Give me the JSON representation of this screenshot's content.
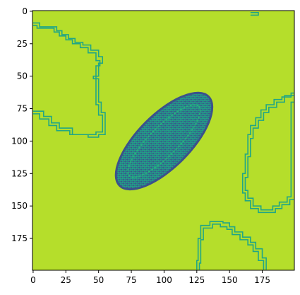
{
  "chart_data": {
    "type": "heatmap",
    "title": "",
    "xlabel": "",
    "ylabel": "",
    "xlim": [
      0,
      199
    ],
    "ylim": [
      199,
      0
    ],
    "grid": false,
    "x_ticks": [
      {
        "value": 0,
        "label": "0"
      },
      {
        "value": 25,
        "label": "25"
      },
      {
        "value": 50,
        "label": "50"
      },
      {
        "value": 75,
        "label": "75"
      },
      {
        "value": 100,
        "label": "100"
      },
      {
        "value": 125,
        "label": "125"
      },
      {
        "value": 150,
        "label": "150"
      },
      {
        "value": 175,
        "label": "175"
      }
    ],
    "y_ticks": [
      {
        "value": 0,
        "label": "0"
      },
      {
        "value": 25,
        "label": "25"
      },
      {
        "value": 50,
        "label": "50"
      },
      {
        "value": 75,
        "label": "75"
      },
      {
        "value": 100,
        "label": "100"
      },
      {
        "value": 125,
        "label": "125"
      },
      {
        "value": 150,
        "label": "150"
      },
      {
        "value": 175,
        "label": "175"
      }
    ],
    "colors": {
      "background": "#b5de2b",
      "contour": "#21a685",
      "dark": "#3b528b",
      "mid": "#2c728e",
      "light_teal": "#28ae80"
    },
    "contours": [
      {
        "name": "top-left blob",
        "points": [
          [
            0,
            9
          ],
          [
            5,
            9
          ],
          [
            5,
            12
          ],
          [
            18,
            12
          ],
          [
            18,
            15
          ],
          [
            22,
            15
          ],
          [
            22,
            18
          ],
          [
            27,
            18
          ],
          [
            27,
            21
          ],
          [
            32,
            21
          ],
          [
            32,
            24
          ],
          [
            38,
            24
          ],
          [
            38,
            26
          ],
          [
            44,
            26
          ],
          [
            44,
            30
          ],
          [
            50,
            30
          ],
          [
            50,
            35
          ],
          [
            53,
            35
          ],
          [
            53,
            40
          ],
          [
            50,
            40
          ],
          [
            50,
            50
          ],
          [
            46,
            50
          ],
          [
            46,
            52
          ],
          [
            50,
            52
          ],
          [
            50,
            70
          ],
          [
            52,
            70
          ],
          [
            52,
            78
          ],
          [
            55,
            78
          ],
          [
            55,
            95
          ],
          [
            50,
            95
          ],
          [
            50,
            97
          ],
          [
            42,
            97
          ],
          [
            42,
            95
          ],
          [
            28,
            95
          ],
          [
            28,
            92
          ],
          [
            18,
            92
          ],
          [
            18,
            88
          ],
          [
            12,
            88
          ],
          [
            12,
            83
          ],
          [
            5,
            83
          ],
          [
            5,
            79
          ],
          [
            0,
            79
          ]
        ]
      },
      {
        "name": "top-left blob outer",
        "points": [
          [
            0,
            11
          ],
          [
            3,
            11
          ],
          [
            3,
            13
          ],
          [
            16,
            13
          ],
          [
            16,
            16
          ],
          [
            20,
            16
          ],
          [
            20,
            19
          ],
          [
            25,
            19
          ],
          [
            25,
            22
          ],
          [
            30,
            22
          ],
          [
            30,
            25
          ],
          [
            36,
            25
          ],
          [
            36,
            28
          ],
          [
            42,
            28
          ],
          [
            42,
            32
          ],
          [
            48,
            32
          ],
          [
            48,
            38
          ],
          [
            51,
            38
          ],
          [
            51,
            42
          ],
          [
            48,
            42
          ],
          [
            48,
            52
          ],
          [
            48,
            72
          ],
          [
            50,
            72
          ],
          [
            50,
            80
          ],
          [
            53,
            80
          ],
          [
            53,
            93
          ],
          [
            48,
            93
          ],
          [
            48,
            95
          ],
          [
            30,
            95
          ],
          [
            30,
            90
          ],
          [
            20,
            90
          ],
          [
            20,
            86
          ],
          [
            14,
            86
          ],
          [
            14,
            81
          ],
          [
            8,
            81
          ],
          [
            8,
            77
          ],
          [
            0,
            77
          ]
        ]
      },
      {
        "name": "right blob",
        "points": [
          [
            199,
            63
          ],
          [
            197,
            63
          ],
          [
            197,
            66
          ],
          [
            190,
            66
          ],
          [
            190,
            68
          ],
          [
            184,
            68
          ],
          [
            184,
            72
          ],
          [
            178,
            72
          ],
          [
            178,
            76
          ],
          [
            174,
            76
          ],
          [
            174,
            82
          ],
          [
            170,
            82
          ],
          [
            170,
            88
          ],
          [
            166,
            88
          ],
          [
            166,
            95
          ],
          [
            164,
            95
          ],
          [
            164,
            110
          ],
          [
            162,
            110
          ],
          [
            162,
            125
          ],
          [
            160,
            125
          ],
          [
            160,
            140
          ],
          [
            162,
            140
          ],
          [
            162,
            146
          ],
          [
            166,
            146
          ],
          [
            166,
            152
          ],
          [
            172,
            152
          ],
          [
            172,
            155
          ],
          [
            185,
            155
          ],
          [
            185,
            152
          ],
          [
            190,
            152
          ],
          [
            190,
            149
          ],
          [
            196,
            149
          ],
          [
            196,
            145
          ],
          [
            199,
            145
          ]
        ]
      },
      {
        "name": "right blob outer",
        "points": [
          [
            199,
            65
          ],
          [
            192,
            65
          ],
          [
            192,
            70
          ],
          [
            186,
            70
          ],
          [
            186,
            74
          ],
          [
            180,
            74
          ],
          [
            180,
            78
          ],
          [
            176,
            78
          ],
          [
            176,
            84
          ],
          [
            172,
            84
          ],
          [
            172,
            90
          ],
          [
            168,
            90
          ],
          [
            168,
            98
          ],
          [
            166,
            98
          ],
          [
            166,
            112
          ],
          [
            164,
            112
          ],
          [
            164,
            128
          ],
          [
            162,
            128
          ],
          [
            162,
            138
          ],
          [
            164,
            138
          ],
          [
            164,
            144
          ],
          [
            168,
            144
          ],
          [
            168,
            150
          ],
          [
            174,
            150
          ],
          [
            174,
            153
          ],
          [
            183,
            153
          ],
          [
            183,
            150
          ],
          [
            188,
            150
          ],
          [
            188,
            147
          ],
          [
            194,
            147
          ],
          [
            194,
            143
          ],
          [
            197,
            143
          ],
          [
            197,
            70
          ],
          [
            199,
            70
          ]
        ]
      },
      {
        "name": "bottom blob",
        "points": [
          [
            125,
            199
          ],
          [
            125,
            192
          ],
          [
            126,
            192
          ],
          [
            126,
            175
          ],
          [
            128,
            175
          ],
          [
            128,
            165
          ],
          [
            135,
            165
          ],
          [
            135,
            162
          ],
          [
            145,
            162
          ],
          [
            145,
            163
          ],
          [
            150,
            163
          ],
          [
            150,
            166
          ],
          [
            154,
            166
          ],
          [
            154,
            170
          ],
          [
            160,
            170
          ],
          [
            160,
            174
          ],
          [
            166,
            174
          ],
          [
            166,
            178
          ],
          [
            170,
            178
          ],
          [
            170,
            183
          ],
          [
            175,
            183
          ],
          [
            175,
            190
          ],
          [
            178,
            190
          ],
          [
            178,
            199
          ]
        ]
      },
      {
        "name": "bottom blob inner",
        "points": [
          [
            127,
            199
          ],
          [
            127,
            194
          ],
          [
            128,
            194
          ],
          [
            128,
            176
          ],
          [
            130,
            176
          ],
          [
            130,
            167
          ],
          [
            137,
            167
          ],
          [
            137,
            164
          ],
          [
            143,
            164
          ],
          [
            143,
            166
          ],
          [
            148,
            166
          ],
          [
            148,
            168
          ],
          [
            152,
            168
          ],
          [
            152,
            172
          ],
          [
            158,
            172
          ],
          [
            158,
            176
          ],
          [
            164,
            176
          ],
          [
            164,
            180
          ],
          [
            168,
            180
          ],
          [
            168,
            185
          ],
          [
            172,
            185
          ],
          [
            172,
            192
          ],
          [
            176,
            192
          ],
          [
            176,
            199
          ]
        ]
      },
      {
        "name": "top-right fleck",
        "points": [
          [
            166,
            1
          ],
          [
            172,
            1
          ],
          [
            172,
            3
          ],
          [
            166,
            3
          ]
        ]
      }
    ],
    "central_blob": {
      "name": "diagonal ellipse",
      "center": [
        100,
        100
      ],
      "rx": 48,
      "ry": 20,
      "rotation_deg": -45,
      "extent_x": [
        55,
        142
      ],
      "extent_y": [
        50,
        145
      ]
    }
  }
}
